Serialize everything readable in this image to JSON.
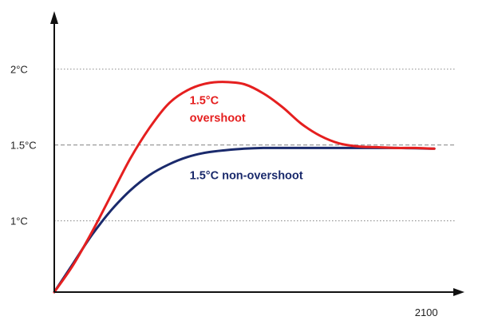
{
  "chart_data": {
    "type": "line",
    "title": "",
    "xlabel": "",
    "ylabel": "",
    "x_ticks": [
      {
        "value": 2100,
        "label": "2100"
      }
    ],
    "y_ticks": [
      {
        "value": 1.0,
        "label": "1°C"
      },
      {
        "value": 1.5,
        "label": "1.5°C"
      },
      {
        "value": 2.0,
        "label": "2°C"
      }
    ],
    "reference_lines": [
      {
        "value": 1.0,
        "style": "dotted"
      },
      {
        "value": 1.5,
        "style": "dashed"
      },
      {
        "value": 2.0,
        "style": "dotted"
      }
    ],
    "ylim": [
      0.53,
      2.35
    ],
    "xlim": [
      2020,
      2104
    ],
    "grid": false,
    "legend": "none (series labelled directly on the plot)",
    "series": [
      {
        "name": "1.5°C overshoot",
        "label_lines": [
          "1.5°C",
          "overshoot"
        ],
        "color": "#e51f1f",
        "x": [
          2020,
          2024,
          2028,
          2032,
          2036,
          2040,
          2044,
          2048,
          2052,
          2056,
          2060,
          2064,
          2068,
          2072,
          2076,
          2080,
          2084,
          2088,
          2092,
          2096,
          2100
        ],
        "y": [
          0.53,
          0.71,
          0.93,
          1.17,
          1.41,
          1.61,
          1.77,
          1.86,
          1.905,
          1.915,
          1.9,
          1.84,
          1.75,
          1.64,
          1.56,
          1.51,
          1.49,
          1.485,
          1.48,
          1.48,
          1.475
        ]
      },
      {
        "name": "1.5°C non-overshoot",
        "label_lines": [
          "1.5°C non-overshoot"
        ],
        "color": "#1a2a6c",
        "x": [
          2020,
          2024,
          2028,
          2032,
          2036,
          2040,
          2044,
          2048,
          2052,
          2056,
          2060,
          2064,
          2068,
          2072,
          2076,
          2080,
          2084,
          2088,
          2092,
          2096,
          2100
        ],
        "y": [
          0.53,
          0.72,
          0.91,
          1.07,
          1.2,
          1.3,
          1.37,
          1.42,
          1.45,
          1.465,
          1.475,
          1.48,
          1.48,
          1.48,
          1.48,
          1.48,
          1.48,
          1.48,
          1.48,
          1.478,
          1.475
        ]
      }
    ]
  },
  "colors": {
    "axis": "#111111",
    "reference_line": "#9a9a9a"
  }
}
